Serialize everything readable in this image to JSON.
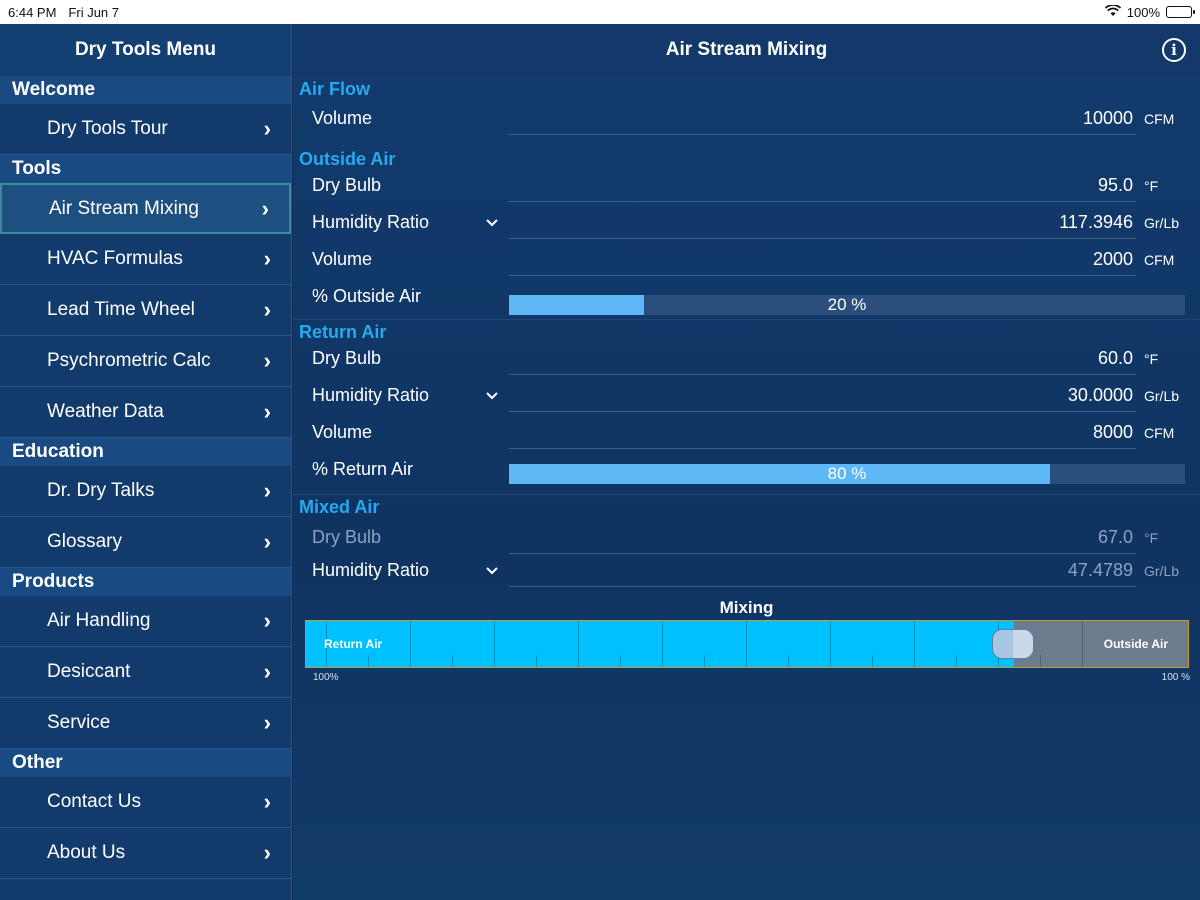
{
  "status_bar": {
    "time": "6:44 PM",
    "date": "Fri Jun 7",
    "battery": "100%"
  },
  "sidebar": {
    "title": "Dry Tools Menu",
    "sections": [
      {
        "header": "Welcome",
        "items": [
          {
            "label": "Dry Tools Tour"
          }
        ]
      },
      {
        "header": "Tools",
        "items": [
          {
            "label": "Air Stream Mixing",
            "selected": true
          },
          {
            "label": "HVAC Formulas"
          },
          {
            "label": "Lead Time Wheel"
          },
          {
            "label": "Psychrometric Calc"
          },
          {
            "label": "Weather Data"
          }
        ]
      },
      {
        "header": "Education",
        "items": [
          {
            "label": "Dr. Dry Talks"
          },
          {
            "label": "Glossary"
          }
        ]
      },
      {
        "header": "Products",
        "items": [
          {
            "label": "Air Handling"
          },
          {
            "label": "Desiccant"
          },
          {
            "label": "Service"
          }
        ]
      },
      {
        "header": "Other",
        "items": [
          {
            "label": "Contact Us"
          },
          {
            "label": "About Us"
          }
        ]
      }
    ]
  },
  "main": {
    "title": "Air Stream Mixing",
    "air_flow": {
      "title": "Air Flow",
      "volume": {
        "label": "Volume",
        "value": "10000",
        "unit": "CFM"
      }
    },
    "outside_air": {
      "title": "Outside Air",
      "dry_bulb": {
        "label": "Dry Bulb",
        "value": "95.0",
        "unit": "°F"
      },
      "humidity_ratio": {
        "label": "Humidity Ratio",
        "value": "117.3946",
        "unit": "Gr/Lb"
      },
      "volume": {
        "label": "Volume",
        "value": "2000",
        "unit": "CFM"
      },
      "percent": {
        "label": "% Outside Air",
        "text": "20 %",
        "fraction": 0.2
      }
    },
    "return_air": {
      "title": "Return Air",
      "dry_bulb": {
        "label": "Dry Bulb",
        "value": "60.0",
        "unit": "°F"
      },
      "humidity_ratio": {
        "label": "Humidity Ratio",
        "value": "30.0000",
        "unit": "Gr/Lb"
      },
      "volume": {
        "label": "Volume",
        "value": "8000",
        "unit": "CFM"
      },
      "percent": {
        "label": "% Return Air",
        "text": "80 %",
        "fraction": 0.8
      }
    },
    "mixed_air": {
      "title": "Mixed Air",
      "dry_bulb": {
        "label": "Dry Bulb",
        "value": "67.0",
        "unit": "°F"
      },
      "humidity_ratio": {
        "label": "Humidity Ratio",
        "value": "47.4789",
        "unit": "Gr/Lb"
      }
    },
    "mixing": {
      "title": "Mixing",
      "left_label": "Return Air",
      "right_label": "Outside Air",
      "left_scale": "100%",
      "right_scale": "100 %",
      "return_fraction": 0.8
    }
  },
  "colors": {
    "accent": "#27a9ee",
    "slider_fill": "#00c1ff",
    "bar_fill": "#5db8f5"
  }
}
